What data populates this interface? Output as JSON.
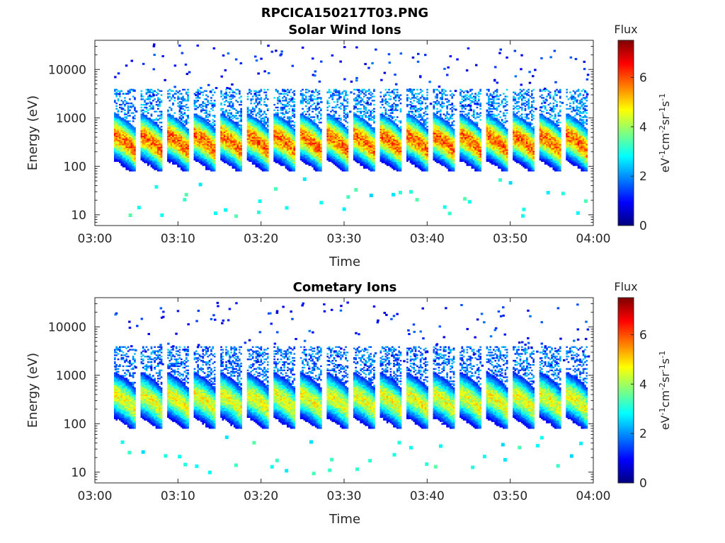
{
  "figure": {
    "title": "RPCICA150217T03.PNG"
  },
  "colorbar": {
    "label": "Flux",
    "units_text": "eV-1cm-2sr-1s-1",
    "range": [
      0,
      7.5
    ],
    "ticks": [
      "0",
      "2",
      "4",
      "6"
    ],
    "colormap": "jet",
    "colors": [
      "#00007f",
      "#0000ff",
      "#007fff",
      "#00ffff",
      "#7fff7f",
      "#ffff00",
      "#ff7f00",
      "#ff0000",
      "#7f0000"
    ]
  },
  "chart_data": [
    {
      "type": "heatmap",
      "title": "Solar Wind Ions",
      "xlabel": "Time",
      "ylabel": "Energy (eV)",
      "yscale": "log",
      "ylim": [
        6,
        40000
      ],
      "xlim": [
        "03:00",
        "04:00"
      ],
      "xticks": [
        "03:00",
        "03:10",
        "03:20",
        "03:30",
        "03:40",
        "03:50",
        "04:00"
      ],
      "yticks": [
        "10",
        "100",
        "1000",
        "10000"
      ],
      "grid": false,
      "legend": "colorbar-right",
      "data_start_minute": 2.3,
      "sweep_period_minutes": 3.2,
      "sweeps": 18,
      "peak_energy_eV": 280,
      "peak_flux": 5.8,
      "background_flux": 1.2
    },
    {
      "type": "heatmap",
      "title": "Cometary Ions",
      "xlabel": "Time",
      "ylabel": "Energy (eV)",
      "yscale": "log",
      "ylim": [
        6,
        40000
      ],
      "xlim": [
        "03:00",
        "04:00"
      ],
      "xticks": [
        "03:00",
        "03:10",
        "03:20",
        "03:30",
        "03:40",
        "03:50",
        "04:00"
      ],
      "yticks": [
        "10",
        "100",
        "1000",
        "10000"
      ],
      "grid": false,
      "legend": "colorbar-right",
      "data_start_minute": 2.3,
      "sweep_period_minutes": 3.2,
      "sweeps": 18,
      "peak_energy_eV": 260,
      "peak_flux": 4.6,
      "background_flux": 1.0
    }
  ]
}
